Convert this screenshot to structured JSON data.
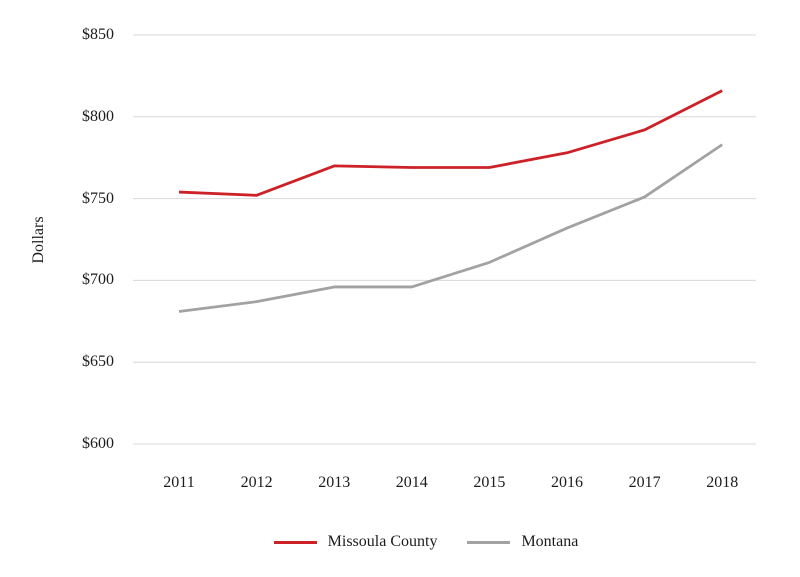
{
  "chart_data": {
    "type": "line",
    "title": "",
    "xlabel": "",
    "ylabel": "Dollars",
    "categories": [
      "2011",
      "2012",
      "2013",
      "2014",
      "2015",
      "2016",
      "2017",
      "2018"
    ],
    "ylim": [
      600,
      850
    ],
    "y_ticks": [
      {
        "value": 850,
        "label": "$850"
      },
      {
        "value": 800,
        "label": "$800"
      },
      {
        "value": 750,
        "label": "$750"
      },
      {
        "value": 700,
        "label": "$700"
      },
      {
        "value": 650,
        "label": "$650"
      },
      {
        "value": 600,
        "label": "$600"
      }
    ],
    "grid": "horizontal-only",
    "grid_color": "#d8d8d8",
    "legend_position": "bottom-center",
    "text_color": "#1c1c1c",
    "series": [
      {
        "name": "Missoula County",
        "color": "#cc2127",
        "values": [
          754,
          752,
          770,
          769,
          769,
          778,
          792,
          816
        ]
      },
      {
        "name": "Montana",
        "color": "#a2a2a2",
        "values": [
          681,
          687,
          696,
          696,
          711,
          732,
          751,
          783
        ]
      }
    ]
  }
}
